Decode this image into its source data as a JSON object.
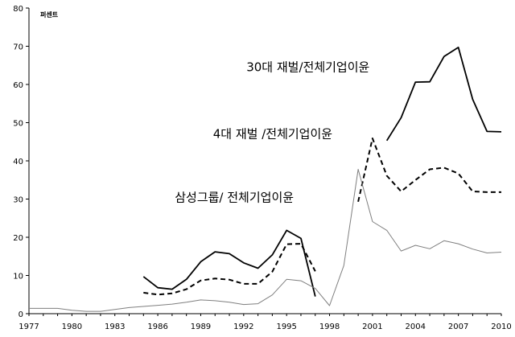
{
  "chart_data": {
    "type": "line",
    "title": "",
    "xlabel": "",
    "ylabel": "",
    "unit_label": "퍼센트",
    "xlim": [
      1977,
      2010
    ],
    "ylim": [
      0,
      80
    ],
    "x_ticks": [
      "1977",
      "1980",
      "1983",
      "1986",
      "1989",
      "1992",
      "1995",
      "1998",
      "2001",
      "2004",
      "2007",
      "2010"
    ],
    "y_ticks": [
      "0",
      "10",
      "20",
      "30",
      "40",
      "50",
      "60",
      "70",
      "80"
    ],
    "grid": false,
    "legend": "none",
    "series": [
      {
        "name": "30대 재벌/전체기업이윤",
        "style": "solid-thick",
        "color": "#000000",
        "segments": [
          [
            [
              1985,
              9.7
            ],
            [
              1986,
              6.8
            ],
            [
              1987,
              6.4
            ],
            [
              1988,
              9.0
            ],
            [
              1989,
              13.6
            ],
            [
              1990,
              16.2
            ],
            [
              1991,
              15.7
            ],
            [
              1992,
              13.3
            ],
            [
              1993,
              11.9
            ],
            [
              1994,
              15.4
            ],
            [
              1995,
              21.8
            ],
            [
              1996,
              19.7
            ],
            [
              1997,
              4.5
            ]
          ],
          [
            [
              2002,
              45.3
            ],
            [
              2003,
              51.3
            ],
            [
              2004,
              60.6
            ],
            [
              2005,
              60.7
            ],
            [
              2006,
              67.3
            ],
            [
              2007,
              69.7
            ],
            [
              2008,
              56.1
            ],
            [
              2009,
              47.7
            ],
            [
              2010,
              47.6
            ]
          ]
        ]
      },
      {
        "name": "4대 재벌 /전체기업이윤",
        "style": "dashed-thick",
        "color": "#000000",
        "segments": [
          [
            [
              1985,
              5.5
            ],
            [
              1986,
              5.0
            ],
            [
              1987,
              5.3
            ],
            [
              1988,
              6.4
            ],
            [
              1989,
              8.7
            ],
            [
              1990,
              9.2
            ],
            [
              1991,
              8.9
            ],
            [
              1992,
              7.8
            ],
            [
              1993,
              7.8
            ],
            [
              1994,
              11.0
            ],
            [
              1995,
              18.2
            ],
            [
              1996,
              18.3
            ],
            [
              1997,
              11.1
            ]
          ],
          [
            [
              2000,
              29.3
            ],
            [
              2001,
              45.9
            ],
            [
              2002,
              36.1
            ],
            [
              2003,
              32.0
            ],
            [
              2004,
              35.0
            ],
            [
              2005,
              37.8
            ],
            [
              2006,
              38.2
            ],
            [
              2007,
              36.7
            ],
            [
              2008,
              32.0
            ],
            [
              2009,
              31.8
            ],
            [
              2010,
              31.8
            ]
          ]
        ]
      },
      {
        "name": "삼성그룹/ 전체기업이윤",
        "style": "solid-thin",
        "color": "#7f7f7f",
        "segments": [
          [
            [
              1977,
              1.4
            ],
            [
              1978,
              1.4
            ],
            [
              1979,
              1.4
            ],
            [
              1980,
              0.9
            ],
            [
              1981,
              0.6
            ],
            [
              1982,
              0.6
            ],
            [
              1983,
              1.1
            ],
            [
              1984,
              1.6
            ],
            [
              1985,
              1.9
            ],
            [
              1986,
              2.2
            ],
            [
              1987,
              2.5
            ],
            [
              1988,
              3.0
            ],
            [
              1989,
              3.6
            ],
            [
              1990,
              3.4
            ],
            [
              1991,
              3.0
            ],
            [
              1992,
              2.4
            ],
            [
              1993,
              2.6
            ],
            [
              1994,
              4.9
            ],
            [
              1995,
              9.0
            ],
            [
              1996,
              8.6
            ],
            [
              1997,
              6.6
            ],
            [
              1998,
              2.1
            ],
            [
              1999,
              12.6
            ],
            [
              2000,
              37.8
            ],
            [
              2001,
              24.1
            ],
            [
              2002,
              21.8
            ],
            [
              2003,
              16.4
            ],
            [
              2004,
              17.9
            ],
            [
              2005,
              17.0
            ],
            [
              2006,
              19.1
            ],
            [
              2007,
              18.3
            ],
            [
              2008,
              16.9
            ],
            [
              2009,
              15.9
            ],
            [
              2010,
              16.1
            ]
          ]
        ]
      }
    ],
    "annotations": [
      {
        "text": "30대 재벌/전체기업이윤",
        "x": 2000.8,
        "y": 63.5
      },
      {
        "text": "4대 재벌 /전체기업이윤",
        "x": 1998.2,
        "y": 46.0
      },
      {
        "text": "삼성그룹/ 전체기업이윤",
        "x": 1995.5,
        "y": 29.4
      }
    ]
  }
}
